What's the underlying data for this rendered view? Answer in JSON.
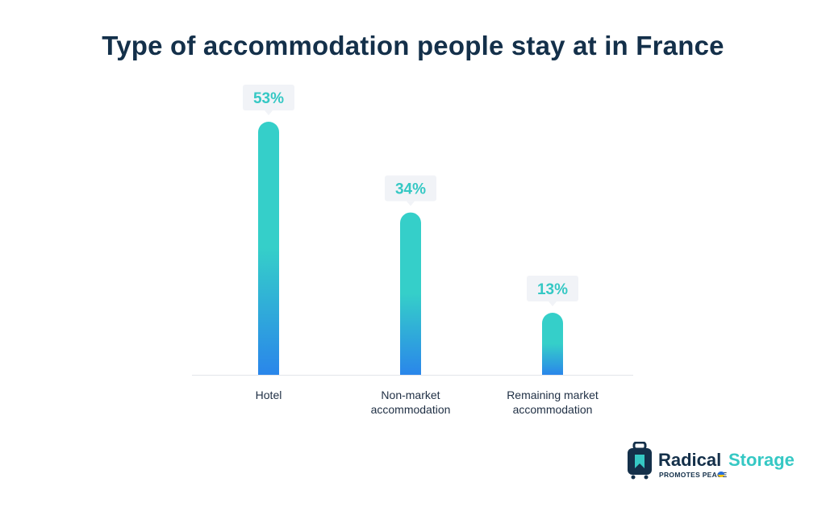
{
  "colors": {
    "title": "#14304a",
    "bar_top": "#35cfc9",
    "bar_bottom": "#2a86ea",
    "label_bg": "#f1f3f7",
    "label_text": "#35c8c4",
    "axis": "#e3e6ea",
    "brand_accent": "#35c8c4",
    "flag_blue": "#2a6fdb",
    "flag_yellow": "#f5c518"
  },
  "chart_data": {
    "type": "bar",
    "title": "Type of accommodation people stay at in France",
    "categories": [
      [
        "Hotel"
      ],
      [
        "Non-market",
        "accommodation"
      ],
      [
        "Remaining market",
        "accommodation"
      ]
    ],
    "values": [
      53,
      34,
      13
    ],
    "data_labels": [
      "53%",
      "34%",
      "13%"
    ],
    "ylim": [
      0,
      53
    ],
    "xlabel": "",
    "ylabel": "",
    "grid": false,
    "legend": "none"
  },
  "brand": {
    "name_part1": "Radical",
    "name_part2": "Storage",
    "tagline": "PROMOTES PEACE",
    "icon": "suitcase-icon",
    "flag_icon": "ukraine-heart-icon"
  }
}
